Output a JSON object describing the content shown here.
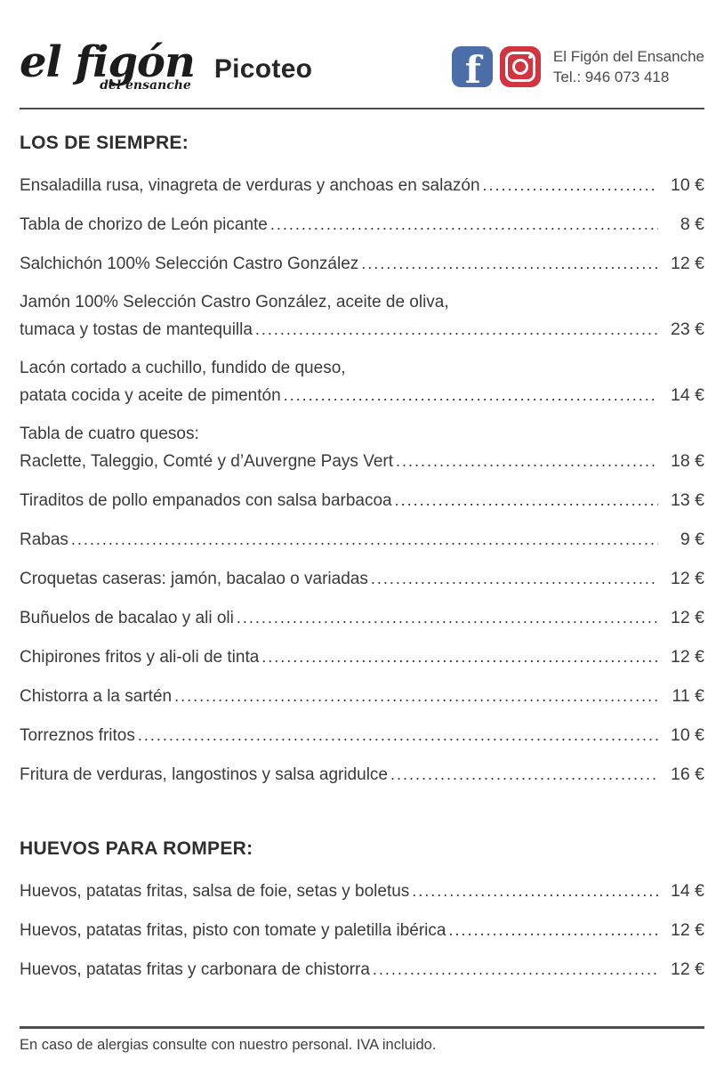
{
  "header": {
    "logo_main": "el figón",
    "logo_sub": "del ensanche",
    "menu_title": "Picoteo",
    "contact_name": "El Figón del Ensanche",
    "contact_phone": "Tel.: 946 073 418",
    "facebook_color": "#4b6ea9",
    "instagram_color": "#d23440"
  },
  "sections": [
    {
      "heading": "LOS DE SIEMPRE:",
      "items": [
        {
          "lines": [
            "Ensaladilla rusa, vinagreta de verduras y anchoas en salazón"
          ],
          "price": "10 €"
        },
        {
          "lines": [
            "Tabla de chorizo de León picante"
          ],
          "price": "8 €"
        },
        {
          "lines": [
            "Salchichón 100% Selección Castro González"
          ],
          "price": "12 €"
        },
        {
          "lines": [
            "Jamón 100% Selección Castro González, aceite de oliva,",
            "tumaca y tostas de mantequilla"
          ],
          "price": "23 €"
        },
        {
          "lines": [
            "Lacón cortado a cuchillo, fundido de queso,",
            "patata cocida y aceite de pimentón"
          ],
          "price": "14 €"
        },
        {
          "lines": [
            "Tabla de cuatro quesos:",
            "Raclette, Taleggio, Comté y d’Auvergne Pays Vert"
          ],
          "price": "18 €"
        },
        {
          "lines": [
            "Tiraditos de pollo empanados con salsa barbacoa"
          ],
          "price": "13 €"
        },
        {
          "lines": [
            "Rabas"
          ],
          "price": "9 €"
        },
        {
          "lines": [
            "Croquetas caseras: jamón, bacalao o variadas"
          ],
          "price": "12 €"
        },
        {
          "lines": [
            "Buñuelos de bacalao y ali oli"
          ],
          "price": "12 €"
        },
        {
          "lines": [
            "Chipirones fritos y ali-oli de tinta"
          ],
          "price": "12 €"
        },
        {
          "lines": [
            "Chistorra a la sartén"
          ],
          "price": "11 €"
        },
        {
          "lines": [
            "Torreznos fritos"
          ],
          "price": "10 €"
        },
        {
          "lines": [
            "Fritura de verduras, langostinos y salsa agridulce"
          ],
          "price": "16 €"
        }
      ]
    },
    {
      "heading": "HUEVOS PARA ROMPER:",
      "items": [
        {
          "lines": [
            "Huevos, patatas fritas, salsa de foie, setas y boletus"
          ],
          "price": "14 €"
        },
        {
          "lines": [
            "Huevos, patatas fritas, pisto con tomate y paletilla ibérica"
          ],
          "price": "12 €"
        },
        {
          "lines": [
            "Huevos, patatas fritas y carbonara de chistorra"
          ],
          "price": "12 €"
        }
      ]
    }
  ],
  "footer": {
    "note": "En caso de alergias consulte con nuestro personal. IVA incluido."
  }
}
